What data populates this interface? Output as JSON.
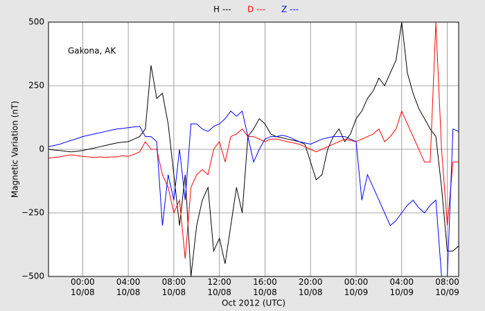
{
  "chart_data": {
    "type": "line",
    "annotation": "Gakona, AK",
    "ylabel": "Magnetic Variation (nT)",
    "xlabel": "Oct 2012 (UTC)",
    "grid": true,
    "xlim": [
      -3,
      33
    ],
    "ylim": [
      -500,
      500
    ],
    "yticks": [
      {
        "value": -500,
        "label": "−500"
      },
      {
        "value": -250,
        "label": "−250"
      },
      0,
      250,
      500
    ],
    "xticks": [
      {
        "value": 0,
        "label": "00:00\n10/08"
      },
      {
        "value": 4,
        "label": "04:00\n10/08"
      },
      {
        "value": 8,
        "label": "08:00\n10/08"
      },
      {
        "value": 12,
        "label": "12:00\n10/08"
      },
      {
        "value": 16,
        "label": "16:00\n10/08"
      },
      {
        "value": 20,
        "label": "20:00\n10/08"
      },
      {
        "value": 24,
        "label": "00:00\n10/09"
      },
      {
        "value": 28,
        "label": "04:00\n10/09"
      },
      {
        "value": 32,
        "label": "08:00\n10/09"
      }
    ],
    "x": [
      -3,
      -2.5,
      -2,
      -1.5,
      -1,
      -0.5,
      0,
      0.5,
      1,
      1.5,
      2,
      2.5,
      3,
      3.5,
      4,
      4.5,
      5,
      5.5,
      6,
      6.5,
      7,
      7.5,
      8,
      8.5,
      9,
      9.5,
      10,
      10.5,
      11,
      11.5,
      12,
      12.5,
      13,
      13.5,
      14,
      14.5,
      15,
      15.5,
      16,
      16.5,
      17,
      17.5,
      18,
      18.5,
      19,
      19.5,
      20,
      20.5,
      21,
      21.5,
      22,
      22.5,
      23,
      23.5,
      24,
      24.5,
      25,
      25.5,
      26,
      26.5,
      27,
      27.5,
      28,
      28.5,
      29,
      29.5,
      30,
      30.5,
      31,
      31.5,
      32,
      32.5,
      33
    ],
    "series": [
      {
        "name": "H ---",
        "color": "#000000",
        "values": [
          0,
          -3,
          -5,
          -8,
          -10,
          -8,
          -5,
          0,
          5,
          10,
          15,
          20,
          25,
          28,
          30,
          40,
          50,
          80,
          330,
          200,
          220,
          100,
          -100,
          -300,
          -100,
          -500,
          -300,
          -200,
          -150,
          -400,
          -350,
          -450,
          -300,
          -150,
          -250,
          50,
          80,
          120,
          100,
          60,
          50,
          45,
          40,
          35,
          30,
          20,
          -50,
          -120,
          -100,
          0,
          50,
          80,
          30,
          60,
          120,
          150,
          200,
          230,
          280,
          250,
          300,
          350,
          500,
          300,
          220,
          160,
          120,
          80,
          50,
          -150,
          -400,
          -400,
          -380
        ]
      },
      {
        "name": "D ---",
        "color": "#ff0000",
        "values": [
          -35,
          -32,
          -30,
          -25,
          -22,
          -25,
          -28,
          -30,
          -32,
          -30,
          -32,
          -30,
          -30,
          -25,
          -28,
          -20,
          -10,
          30,
          0,
          0,
          -100,
          -150,
          -250,
          -200,
          -430,
          -150,
          -100,
          -80,
          -100,
          0,
          30,
          -50,
          50,
          60,
          80,
          50,
          50,
          40,
          30,
          40,
          40,
          35,
          30,
          25,
          20,
          10,
          0,
          -10,
          0,
          10,
          20,
          30,
          40,
          35,
          30,
          40,
          50,
          60,
          80,
          30,
          50,
          80,
          150,
          100,
          50,
          0,
          -50,
          -50,
          500,
          0,
          -300,
          -50,
          -50
        ]
      },
      {
        "name": "Z ---",
        "color": "#0000ff",
        "values": [
          10,
          15,
          20,
          28,
          35,
          42,
          50,
          55,
          60,
          65,
          70,
          75,
          80,
          82,
          85,
          88,
          90,
          50,
          50,
          30,
          -300,
          -100,
          -200,
          0,
          -200,
          100,
          100,
          80,
          70,
          90,
          100,
          120,
          150,
          130,
          150,
          50,
          -50,
          0,
          40,
          50,
          50,
          55,
          50,
          40,
          30,
          25,
          20,
          30,
          40,
          45,
          50,
          50,
          50,
          40,
          30,
          -200,
          -100,
          -150,
          -200,
          -250,
          -300,
          -280,
          -250,
          -220,
          -200,
          -230,
          -250,
          -220,
          -200,
          -500,
          -500,
          80,
          70
        ]
      }
    ]
  }
}
